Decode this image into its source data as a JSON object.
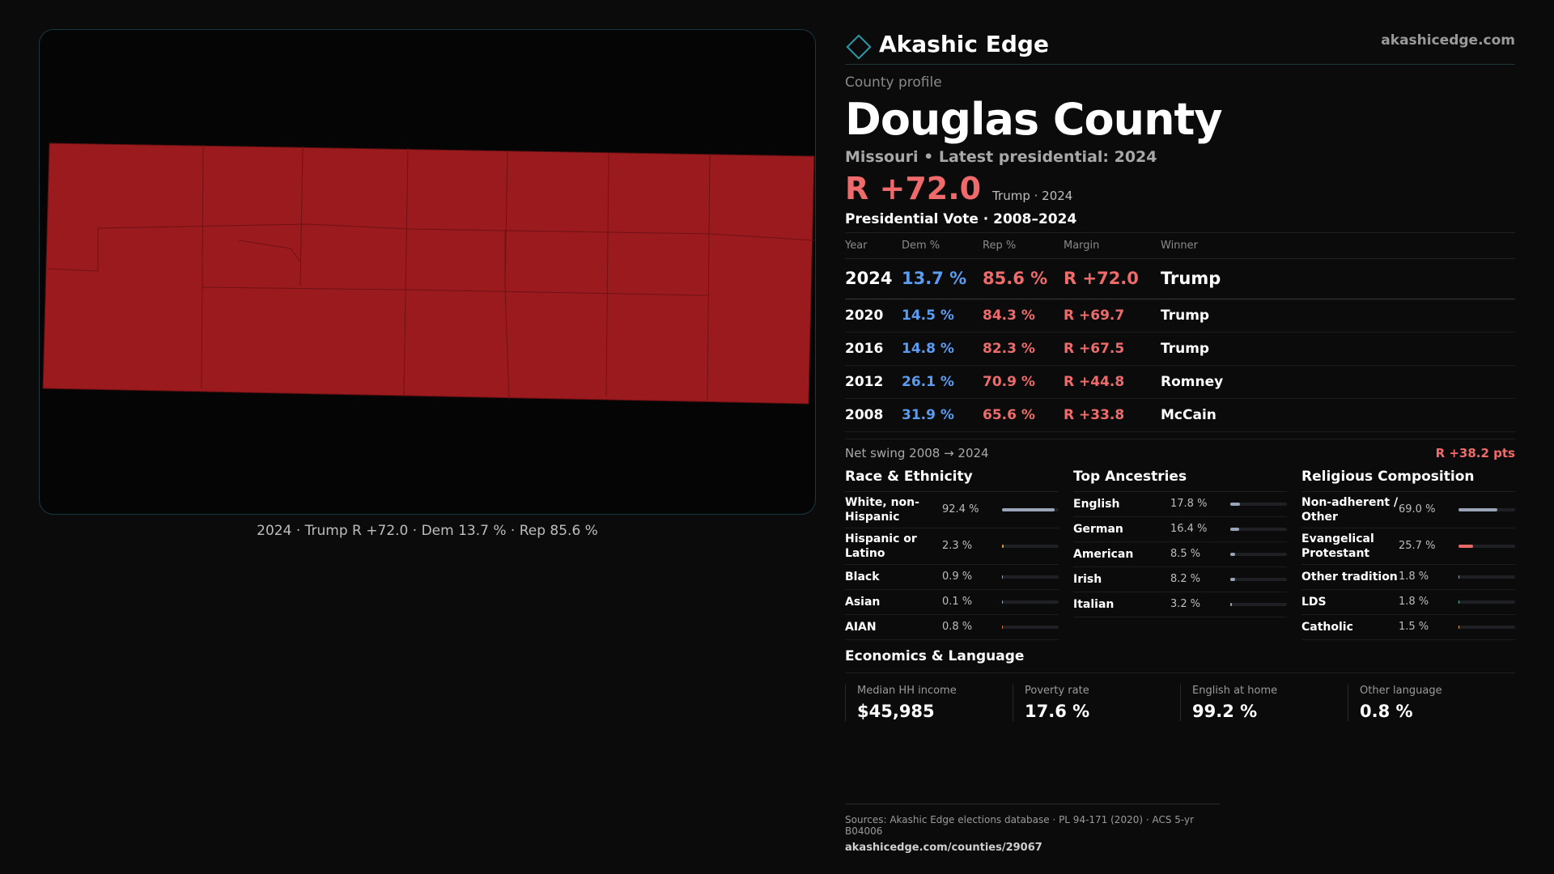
{
  "map": {
    "caption": "2024 · Trump R +72.0 · Dem 13.7 % · Rep 85.6 %",
    "fill_color": "#9b1a1e"
  },
  "header": {
    "brand": "Akashic Edge",
    "site": "akashicedge.com",
    "icon": "diamond-logo-icon"
  },
  "profile": {
    "eyebrow": "County profile",
    "county": "Douglas County",
    "subtitle": "Missouri • Latest presidential: 2024",
    "margin": "R +72.0",
    "margin_note": "Trump · 2024"
  },
  "vote_table": {
    "title": "Presidential Vote · 2008–2024",
    "headers": [
      "Year",
      "Dem %",
      "Rep %",
      "Margin",
      "Winner"
    ],
    "rows": [
      {
        "year": "2024",
        "dem": "13.7 %",
        "rep": "85.6 %",
        "margin": "R +72.0",
        "winner": "Trump"
      },
      {
        "year": "2020",
        "dem": "14.5 %",
        "rep": "84.3 %",
        "margin": "R +69.7",
        "winner": "Trump"
      },
      {
        "year": "2016",
        "dem": "14.8 %",
        "rep": "82.3 %",
        "margin": "R +67.5",
        "winner": "Trump"
      },
      {
        "year": "2012",
        "dem": "26.1 %",
        "rep": "70.9 %",
        "margin": "R +44.8",
        "winner": "Romney"
      },
      {
        "year": "2008",
        "dem": "31.9 %",
        "rep": "65.6 %",
        "margin": "R +33.8",
        "winner": "McCain"
      }
    ]
  },
  "swing": {
    "label": "Net swing 2008 → 2024",
    "value": "R +38.2 pts"
  },
  "race": {
    "title": "Race & Ethnicity",
    "items": [
      {
        "label": "White, non-Hispanic",
        "value": "92.4 %",
        "pct": 92.4,
        "color": "#9aa4b8"
      },
      {
        "label": "Hispanic or Latino",
        "value": "2.3 %",
        "pct": 2.3,
        "color": "#e0a030"
      },
      {
        "label": "Black",
        "value": "0.9 %",
        "pct": 0.9,
        "color": "#9aa4b8"
      },
      {
        "label": "Asian",
        "value": "0.1 %",
        "pct": 0.1,
        "color": "#9aa4b8"
      },
      {
        "label": "AIAN",
        "value": "0.8 %",
        "pct": 0.8,
        "color": "#e07030"
      }
    ]
  },
  "ancestry": {
    "title": "Top Ancestries",
    "items": [
      {
        "label": "English",
        "value": "17.8 %",
        "pct": 17.8,
        "color": "#9aa4b8"
      },
      {
        "label": "German",
        "value": "16.4 %",
        "pct": 16.4,
        "color": "#9aa4b8"
      },
      {
        "label": "American",
        "value": "8.5 %",
        "pct": 8.5,
        "color": "#9aa4b8"
      },
      {
        "label": "Irish",
        "value": "8.2 %",
        "pct": 8.2,
        "color": "#9aa4b8"
      },
      {
        "label": "Italian",
        "value": "3.2 %",
        "pct": 3.2,
        "color": "#9aa4b8"
      }
    ]
  },
  "religion": {
    "title": "Religious Composition",
    "items": [
      {
        "label": "Non-adherent / Other",
        "value": "69.0 %",
        "pct": 69.0,
        "color": "#9aa4b8"
      },
      {
        "label": "Evangelical Protestant",
        "value": "25.7 %",
        "pct": 25.7,
        "color": "#e86868"
      },
      {
        "label": "Other tradition",
        "value": "1.8 %",
        "pct": 1.8,
        "color": "#9aa4b8"
      },
      {
        "label": "LDS",
        "value": "1.8 %",
        "pct": 1.8,
        "color": "#50c090"
      },
      {
        "label": "Catholic",
        "value": "1.5 %",
        "pct": 1.5,
        "color": "#e0a030"
      }
    ]
  },
  "economics": {
    "title": "Economics & Language",
    "stats": [
      {
        "label": "Median HH income",
        "value": "$45,985"
      },
      {
        "label": "Poverty rate",
        "value": "17.6 %"
      },
      {
        "label": "English at home",
        "value": "99.2 %"
      },
      {
        "label": "Other language",
        "value": "0.8 %"
      }
    ]
  },
  "sources": {
    "text": "Sources: Akashic Edge elections database · PL 94-171 (2020) · ACS 5-yr B04006",
    "url": "akashicedge.com/counties/29067"
  }
}
